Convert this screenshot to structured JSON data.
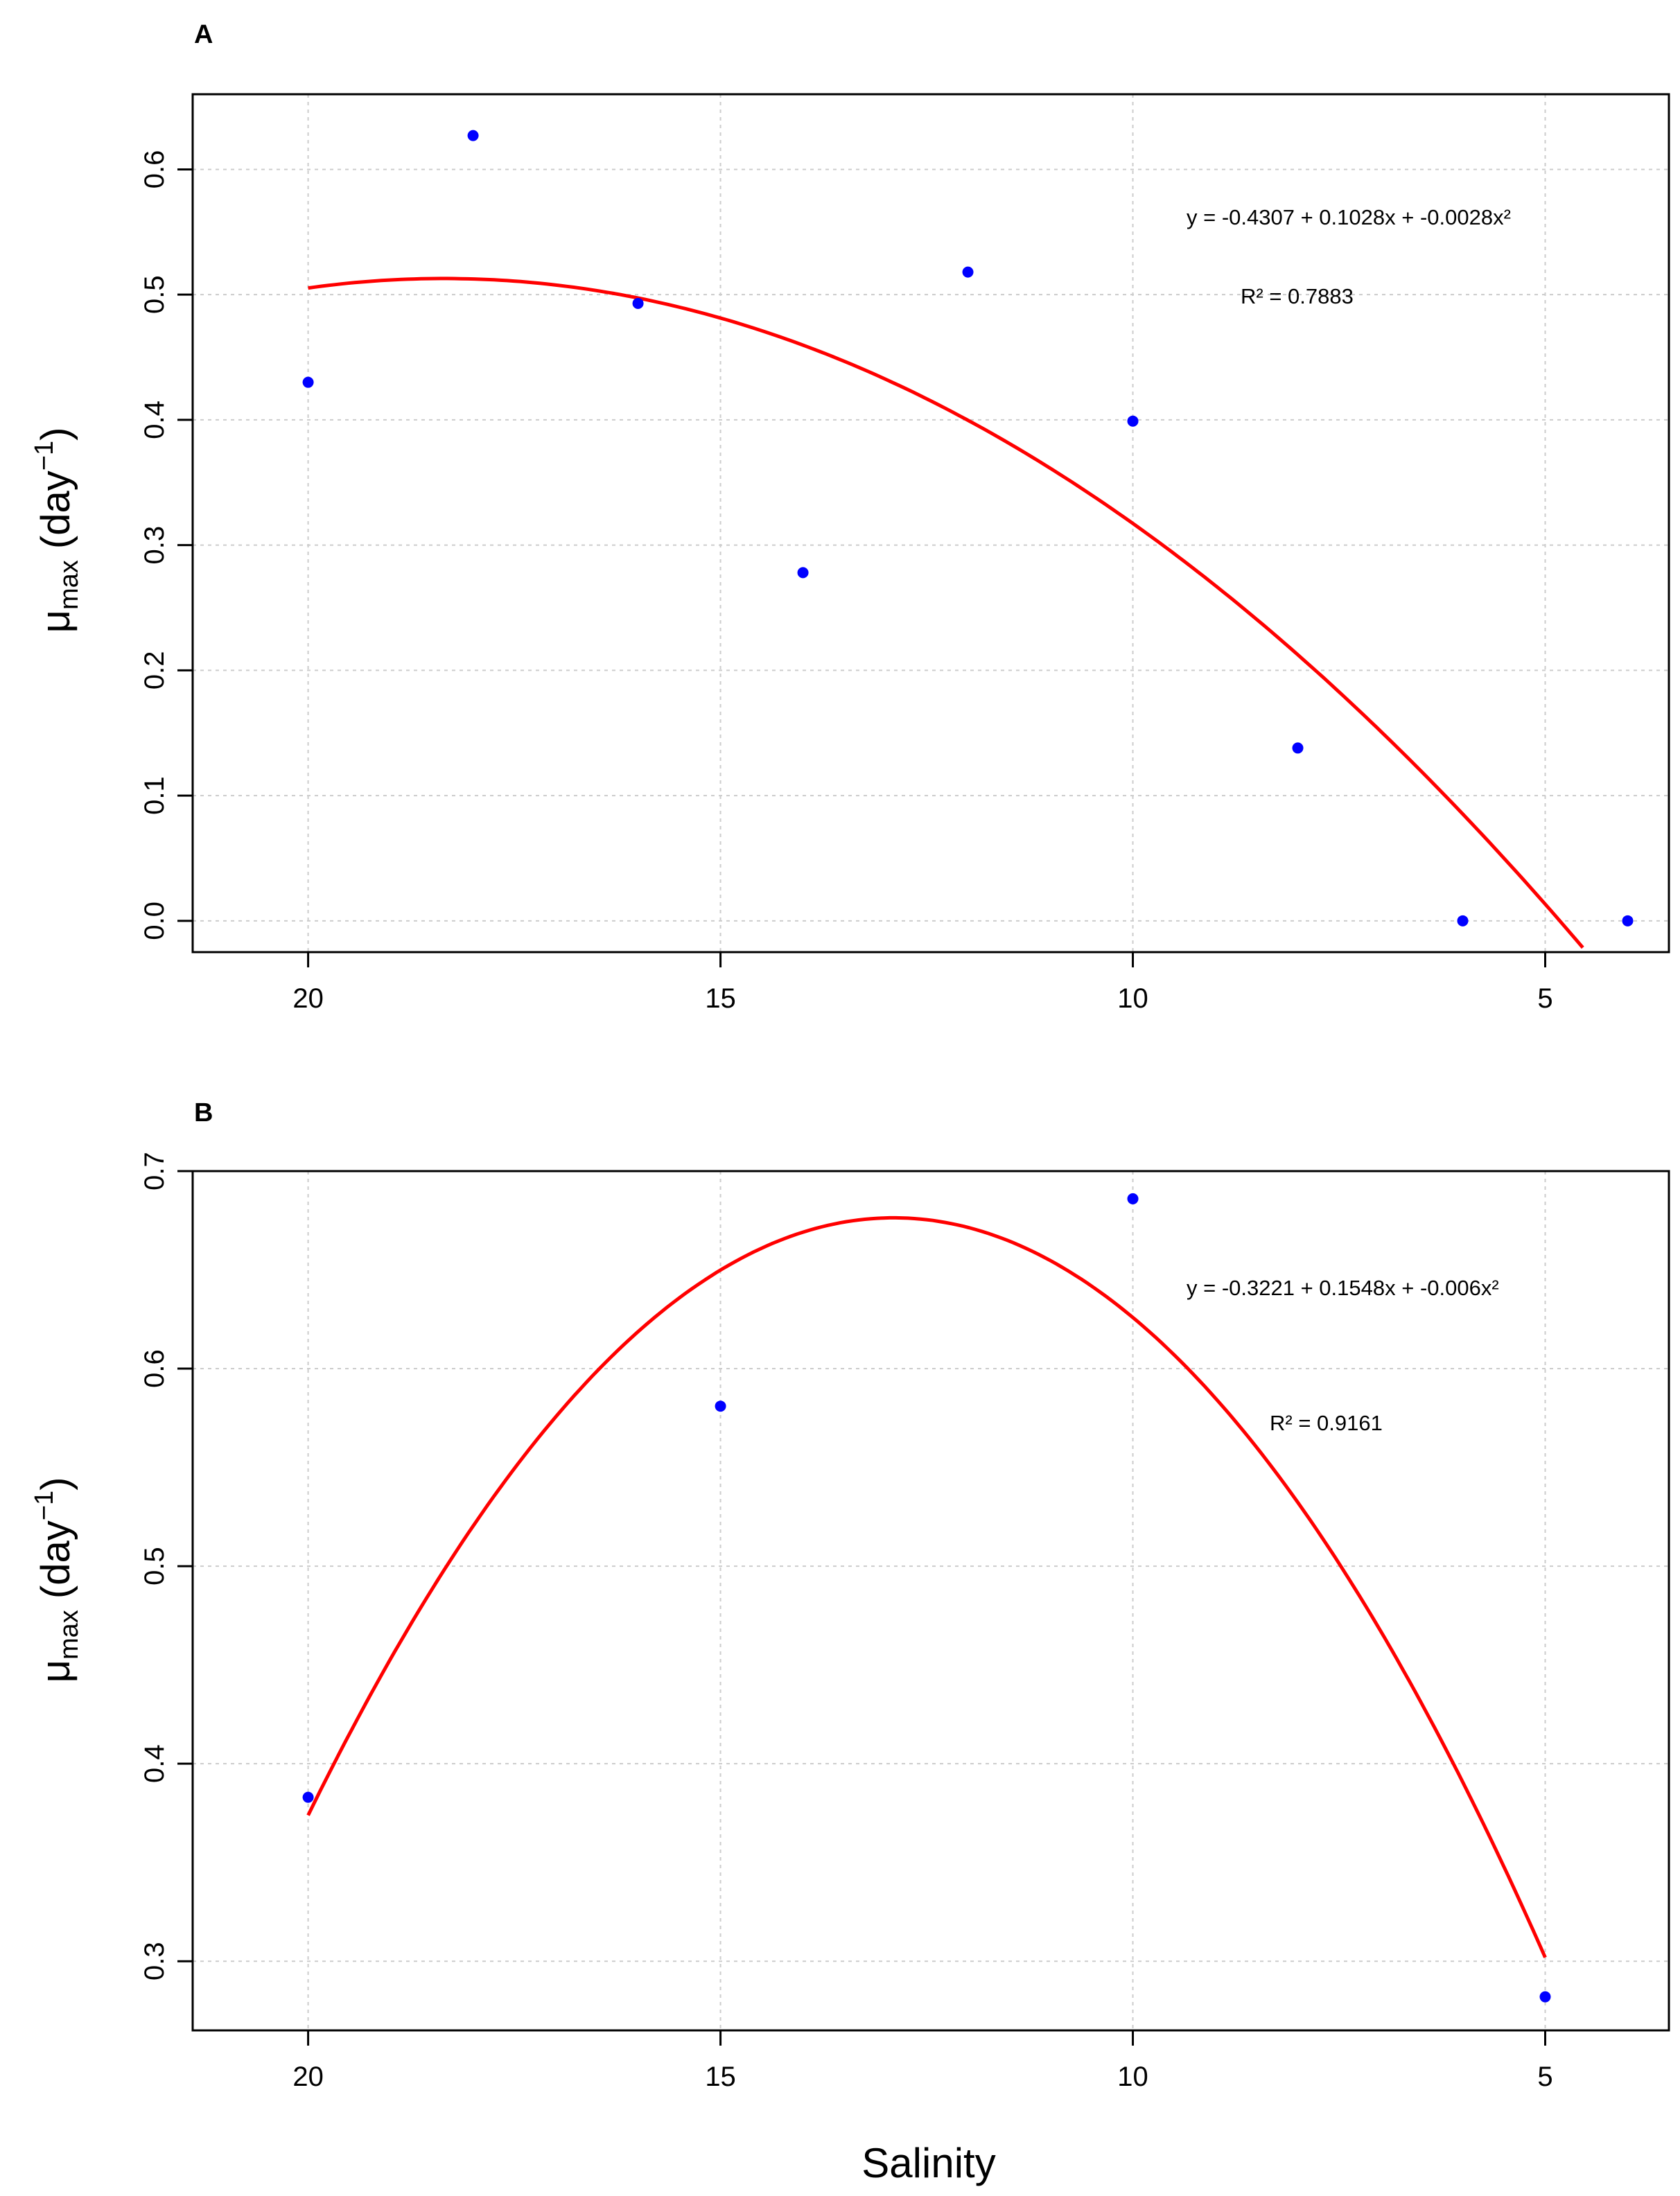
{
  "chart_data": [
    {
      "type": "scatter",
      "panel_label": "A",
      "ylabel": {
        "main": "μ",
        "sub": "max",
        "unit_open": " (day",
        "sup": "−1",
        "unit_close": ")"
      },
      "xlabel": "",
      "xlim": [
        21.4,
        3.5
      ],
      "ylim": [
        -0.025,
        0.66
      ],
      "x_ticks": [
        20,
        15,
        10,
        5
      ],
      "x_tick_labels": [
        "20",
        "15",
        "10",
        "5"
      ],
      "y_ticks": [
        0.0,
        0.1,
        0.2,
        0.3,
        0.4,
        0.5,
        0.6
      ],
      "y_tick_labels": [
        "0.0",
        "0.1",
        "0.2",
        "0.3",
        "0.4",
        "0.5",
        "0.6"
      ],
      "grid": true,
      "points": {
        "x": [
          20,
          18,
          16,
          14,
          12,
          10,
          8,
          6,
          4
        ],
        "y": [
          0.43,
          0.627,
          0.493,
          0.278,
          0.518,
          0.399,
          0.138,
          0.0,
          0.0
        ],
        "color": "#0000ff"
      },
      "fit": {
        "coefficients": [
          -0.4307,
          0.1028,
          -0.0028
        ],
        "x_range": [
          20,
          3.9
        ],
        "color": "#ff0000",
        "equation_label": "y = -0.4307 + 0.1028x + -0.0028x²",
        "r2_label": "R² = 0.7883"
      }
    },
    {
      "type": "scatter",
      "panel_label": "B",
      "ylabel": {
        "main": "μ",
        "sub": "max",
        "unit_open": " (day",
        "sup": "−1",
        "unit_close": ")"
      },
      "xlabel": "Salinity",
      "xlim": [
        21.4,
        3.5
      ],
      "ylim": [
        0.265,
        0.7
      ],
      "x_ticks": [
        20,
        15,
        10,
        5
      ],
      "x_tick_labels": [
        "20",
        "15",
        "10",
        "5"
      ],
      "y_ticks": [
        0.3,
        0.4,
        0.5,
        0.6,
        0.7
      ],
      "y_tick_labels": [
        "0.3",
        "0.4",
        "0.5",
        "0.6",
        "0.7"
      ],
      "grid": true,
      "points": {
        "x": [
          20,
          15,
          10,
          5
        ],
        "y": [
          0.383,
          0.581,
          0.686,
          0.282
        ],
        "color": "#0000ff"
      },
      "fit": {
        "coefficients": [
          -0.3221,
          0.1548,
          -0.006
        ],
        "x_range": [
          20,
          5
        ],
        "color": "#ff0000",
        "equation_label": "y = -0.3221 + 0.1548x + -0.006x²",
        "r2_label": "R² = 0.9161"
      }
    }
  ]
}
